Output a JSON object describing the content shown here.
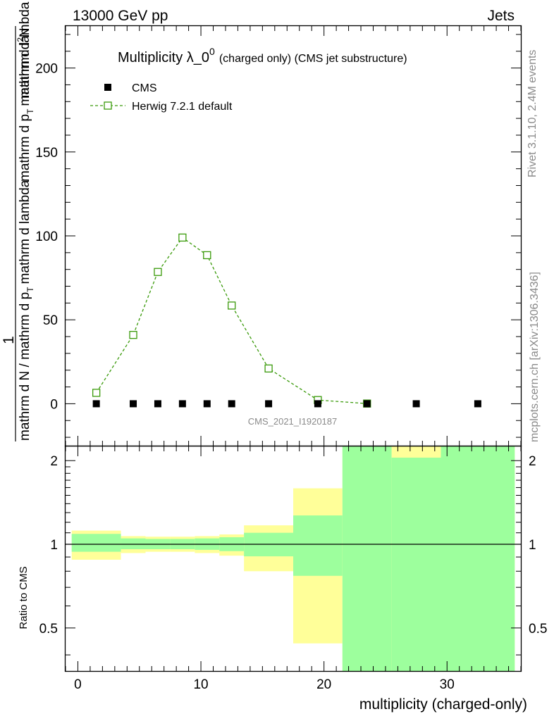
{
  "header": {
    "energy": "13000 GeV pp",
    "process": "Jets"
  },
  "side_labels": {
    "rivet": "Rivet 3.1.10,  2.4M events",
    "mcplots": "mcplots.cern.ch [arXiv:1306.3436]"
  },
  "watermark": "CMS_2021_I1920187",
  "colors": {
    "data": "#000000",
    "mc": "#3a9a0a",
    "band_inner": "#9dff9d",
    "band_outer": "#ffff99"
  },
  "chart_data": [
    {
      "type": "scatter",
      "title_main": "Multiplicity λ_0",
      "title_sup": "0",
      "title_sub": "(charged only) (CMS jet substructure)",
      "ylabel": "1/(mathrm d N / mathrm d p_T mathrm d lambda) · mathrm d²N / (mathrm d p_T mathrm d lambda)",
      "ylabel_numerator": "1",
      "ylabel_denominator": "mathrm d N / mathrm d p",
      "ylabel_denominator_tail": "mathrm d lambda",
      "ylabel_upper_a": "mathrm d",
      "ylabel_upper_b": "N",
      "ylabel_upper_sup": "2",
      "ylabel_lower": "mathrm d p",
      "ylabel_lower_tail": "mathrm d lambda",
      "ylabel_sub_T": "T",
      "xlim": [
        -1,
        36
      ],
      "ylim": [
        -25,
        225
      ],
      "yticks": [
        "0",
        "50",
        "100",
        "150",
        "200"
      ],
      "legend": [
        "CMS",
        "Herwig 7.2.1 default"
      ],
      "series": [
        {
          "name": "CMS",
          "x": [
            1.5,
            4.5,
            6.5,
            8.5,
            10.5,
            12.5,
            15.5,
            19.5,
            23.5,
            27.5,
            32.5
          ],
          "y": [
            0,
            0,
            0,
            0,
            0,
            0,
            0,
            0,
            0,
            0,
            0
          ]
        },
        {
          "name": "Herwig 7.2.1 default",
          "x": [
            1.5,
            4.5,
            6.5,
            8.5,
            10.5,
            12.5,
            15.5,
            19.5,
            23.5
          ],
          "y": [
            6.5,
            41,
            78.5,
            99,
            88.5,
            58.5,
            21,
            2.2,
            0.1
          ]
        }
      ]
    },
    {
      "type": "area",
      "ylabel": "Ratio to CMS",
      "xlabel": "multiplicity (charged-only)",
      "xlim": [
        -1,
        36
      ],
      "ylim": [
        0.35,
        2.25
      ],
      "yticks": [
        "0.5",
        "1",
        "2"
      ],
      "xticks": [
        "0",
        "10",
        "20",
        "30"
      ],
      "bins": [
        {
          "x0": -0.5,
          "x1": 3.5,
          "inner": [
            0.94,
            1.09
          ],
          "outer": [
            0.88,
            1.12
          ]
        },
        {
          "x0": 3.5,
          "x1": 5.5,
          "inner": [
            0.96,
            1.05
          ],
          "outer": [
            0.93,
            1.07
          ]
        },
        {
          "x0": 5.5,
          "x1": 7.5,
          "inner": [
            0.96,
            1.045
          ],
          "outer": [
            0.94,
            1.065
          ]
        },
        {
          "x0": 7.5,
          "x1": 9.5,
          "inner": [
            0.96,
            1.045
          ],
          "outer": [
            0.94,
            1.065
          ]
        },
        {
          "x0": 9.5,
          "x1": 11.5,
          "inner": [
            0.955,
            1.05
          ],
          "outer": [
            0.93,
            1.07
          ]
        },
        {
          "x0": 11.5,
          "x1": 13.5,
          "inner": [
            0.945,
            1.06
          ],
          "outer": [
            0.91,
            1.085
          ]
        },
        {
          "x0": 13.5,
          "x1": 17.5,
          "inner": [
            0.905,
            1.1
          ],
          "outer": [
            0.8,
            1.17
          ]
        },
        {
          "x0": 17.5,
          "x1": 21.5,
          "inner": [
            0.77,
            1.27
          ],
          "outer": [
            0.44,
            1.59
          ]
        },
        {
          "x0": 21.5,
          "x1": 25.5,
          "inner": [
            0.35,
            2.25
          ],
          "outer": [
            0.35,
            2.25
          ]
        },
        {
          "x0": 25.5,
          "x1": 29.5,
          "inner": [
            0.35,
            2.05
          ],
          "outer": [
            0.35,
            2.25
          ]
        },
        {
          "x0": 29.5,
          "x1": 35.5,
          "inner": [
            0.35,
            2.25
          ],
          "outer": [
            0.35,
            2.25
          ]
        }
      ]
    }
  ]
}
